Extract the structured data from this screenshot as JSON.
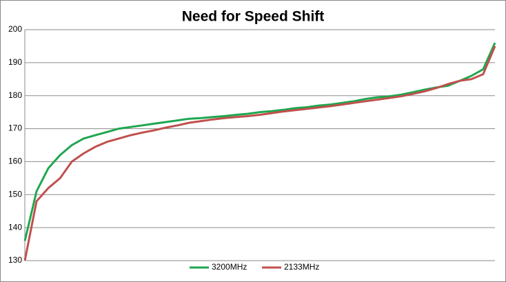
{
  "chart_data": {
    "type": "line",
    "title": "Need for Speed Shift",
    "ylim": [
      130,
      200
    ],
    "yticks": [
      130,
      140,
      150,
      160,
      170,
      180,
      190,
      200
    ],
    "grid": true,
    "legend": "bottom",
    "series": [
      {
        "name": "3200MHz",
        "color": "#1fa64f",
        "values": [
          136,
          151,
          158,
          162,
          165,
          167,
          168,
          169,
          170,
          170.5,
          171,
          171.5,
          172,
          172.5,
          173,
          173.2,
          173.5,
          173.8,
          174.2,
          174.5,
          175,
          175.3,
          175.7,
          176.2,
          176.5,
          177,
          177.3,
          177.8,
          178.3,
          179,
          179.5,
          179.8,
          180.3,
          181,
          181.8,
          182.5,
          183,
          184.5,
          186,
          188,
          196
        ]
      },
      {
        "name": "2133MHz",
        "color": "#c0504d",
        "values": [
          130,
          148,
          152,
          155,
          160,
          162.5,
          164.5,
          166,
          167,
          168,
          168.8,
          169.5,
          170.3,
          171,
          171.8,
          172.3,
          172.8,
          173.2,
          173.5,
          173.8,
          174.2,
          174.7,
          175.2,
          175.6,
          176,
          176.4,
          176.8,
          177.3,
          177.8,
          178.3,
          178.8,
          179.3,
          179.8,
          180.5,
          181.3,
          182.3,
          183.5,
          184.5,
          185,
          186.5,
          195
        ]
      }
    ]
  }
}
